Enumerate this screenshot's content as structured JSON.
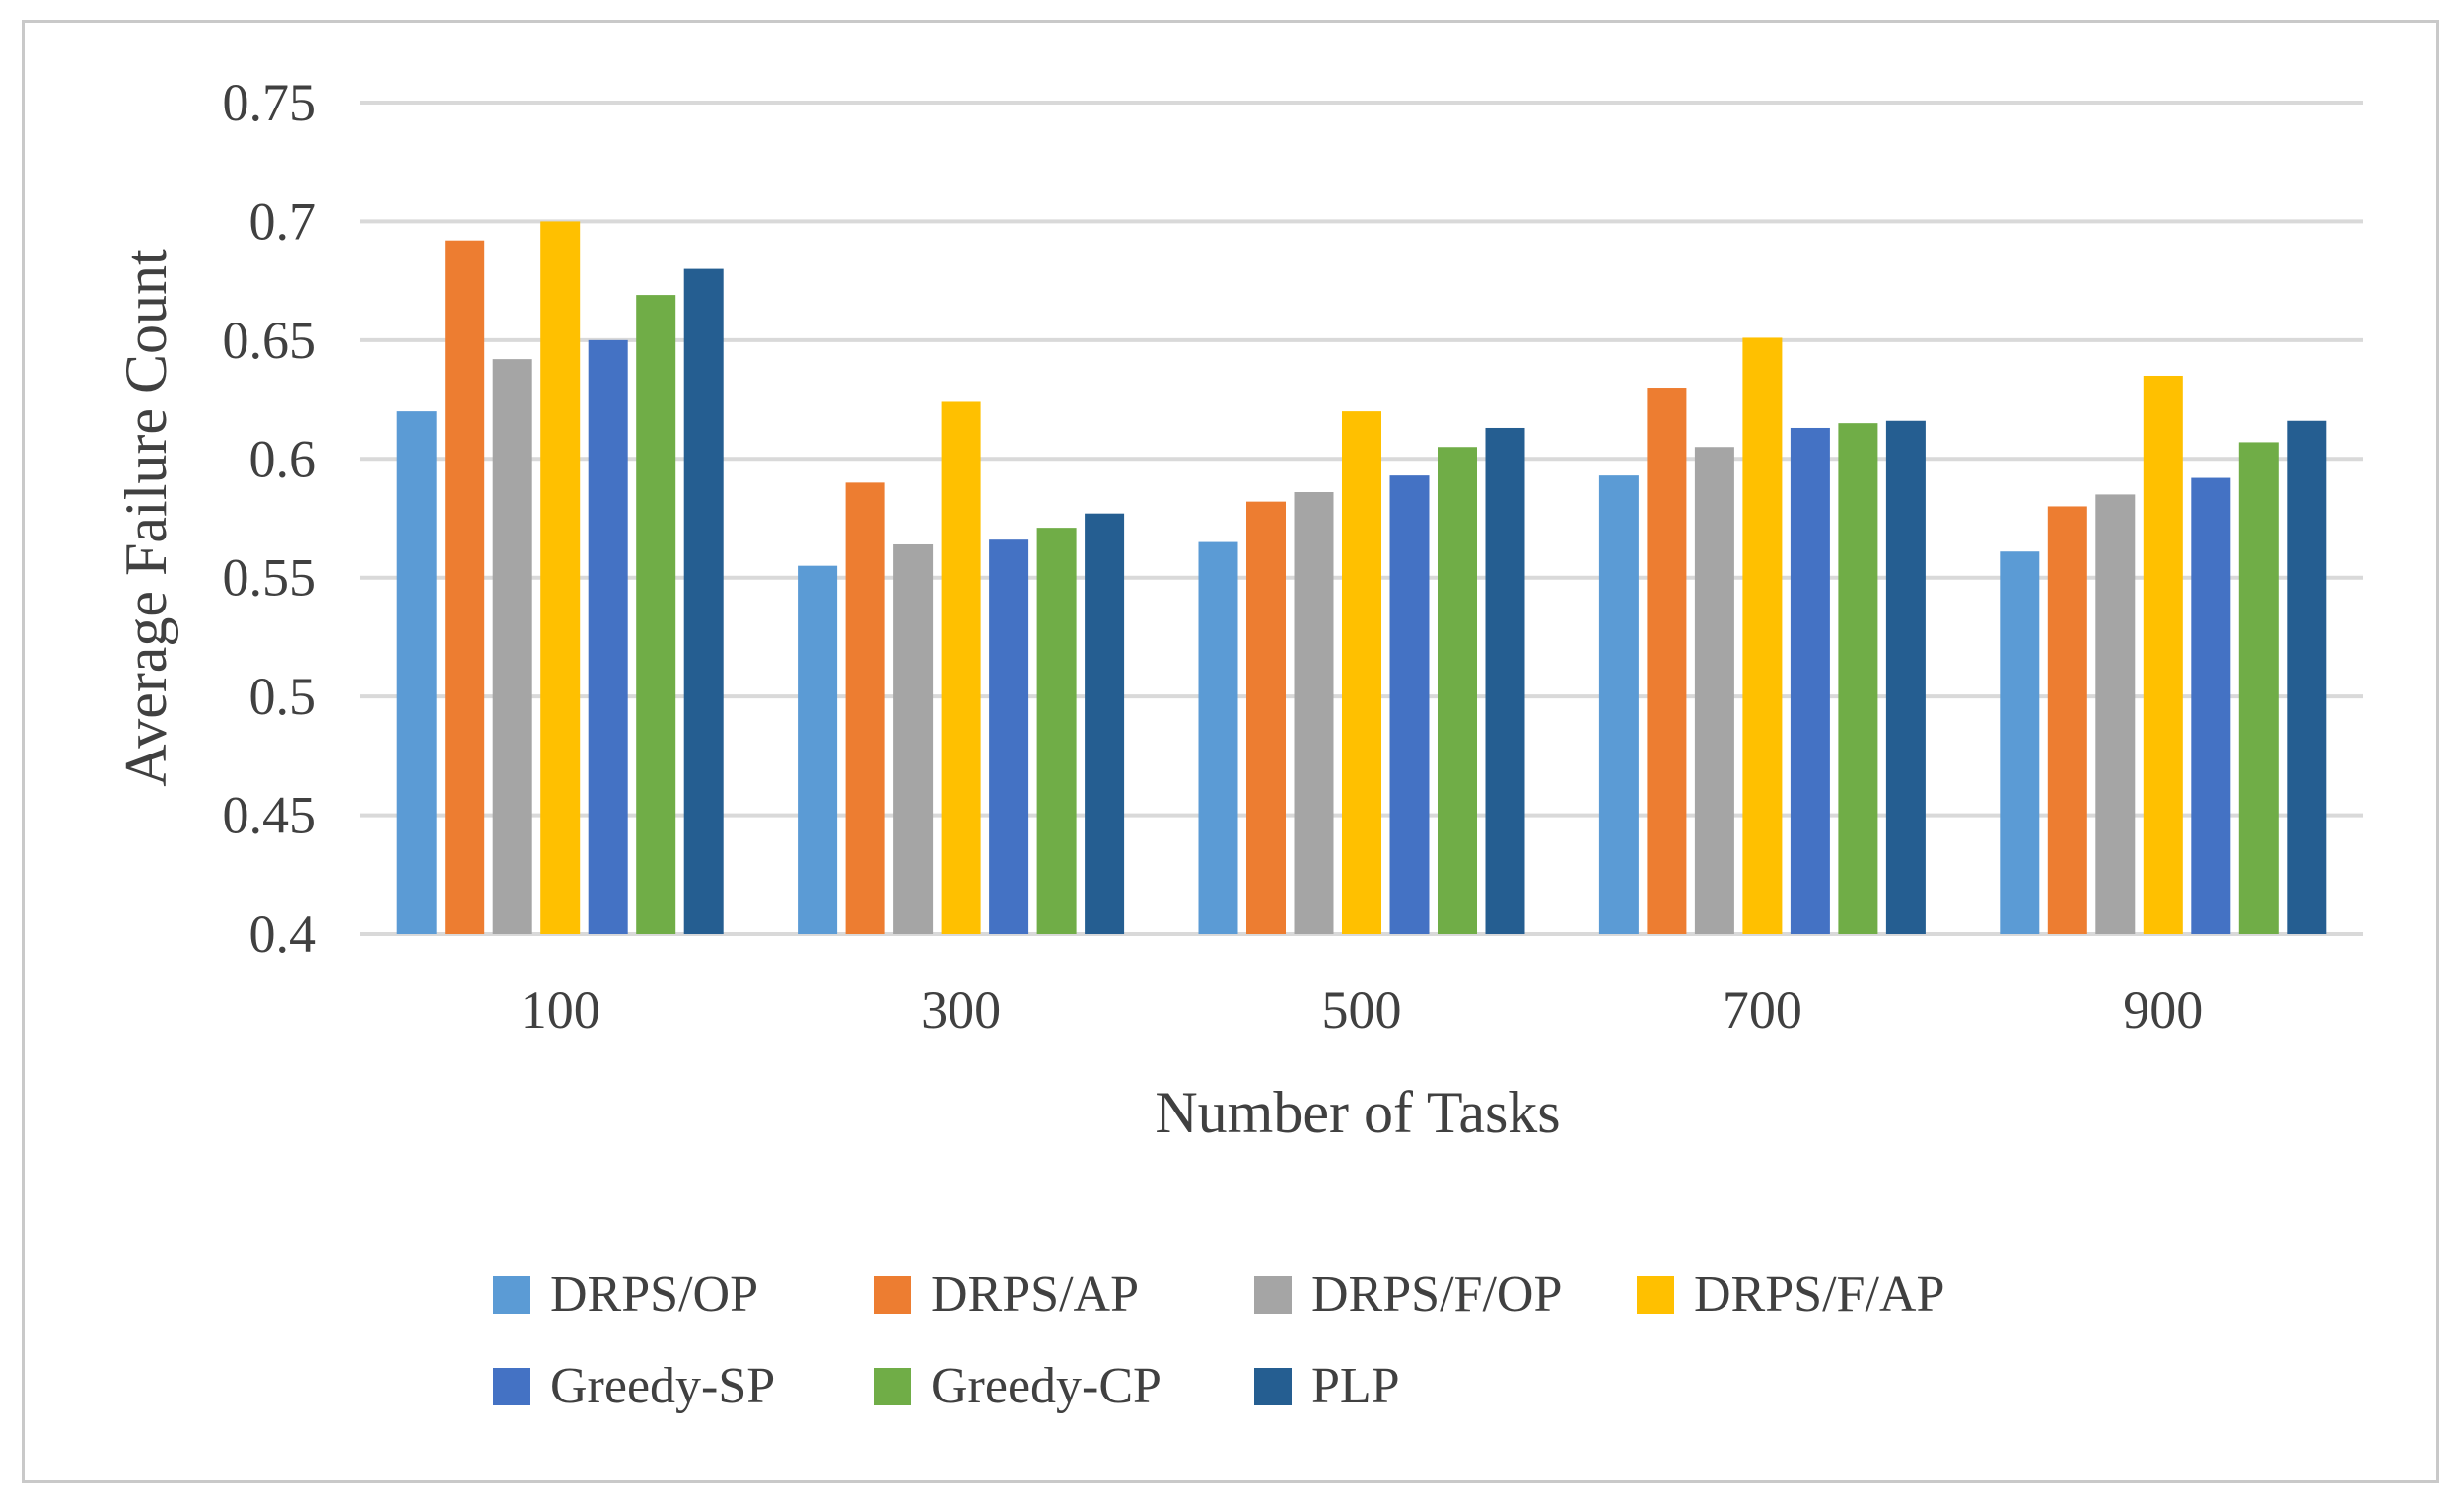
{
  "chart_data": {
    "type": "bar",
    "title": "",
    "xlabel": "Number of Tasks",
    "ylabel": "Average Failure Count",
    "categories": [
      "100",
      "300",
      "500",
      "700",
      "900"
    ],
    "ylim": [
      0.4,
      0.75
    ],
    "yticks": [
      0.4,
      0.45,
      0.5,
      0.55,
      0.6,
      0.65,
      0.7,
      0.75
    ],
    "ytick_labels": [
      "0.4",
      "0.45",
      "0.5",
      "0.55",
      "0.6",
      "0.65",
      "0.7",
      "0.75"
    ],
    "grid": true,
    "legend_position": "bottom",
    "series": [
      {
        "name": "DRPS/OP",
        "color": "#5b9bd5",
        "values": [
          0.62,
          0.555,
          0.565,
          0.593,
          0.561
        ]
      },
      {
        "name": "DRPS/AP",
        "color": "#ed7d31",
        "values": [
          0.692,
          0.59,
          0.582,
          0.63,
          0.58
        ]
      },
      {
        "name": "DRPS/F/OP",
        "color": "#a5a5a5",
        "values": [
          0.642,
          0.564,
          0.586,
          0.605,
          0.585
        ]
      },
      {
        "name": "DRPS/F/AP",
        "color": "#ffc000",
        "values": [
          0.7,
          0.624,
          0.62,
          0.651,
          0.635
        ]
      },
      {
        "name": "Greedy-SP",
        "color": "#4472c4",
        "values": [
          0.65,
          0.566,
          0.593,
          0.613,
          0.592
        ]
      },
      {
        "name": "Greedy-CP",
        "color": "#70ad47",
        "values": [
          0.669,
          0.571,
          0.605,
          0.615,
          0.607
        ]
      },
      {
        "name": "PLP",
        "color": "#255e91",
        "values": [
          0.68,
          0.577,
          0.613,
          0.616,
          0.616
        ]
      }
    ]
  }
}
